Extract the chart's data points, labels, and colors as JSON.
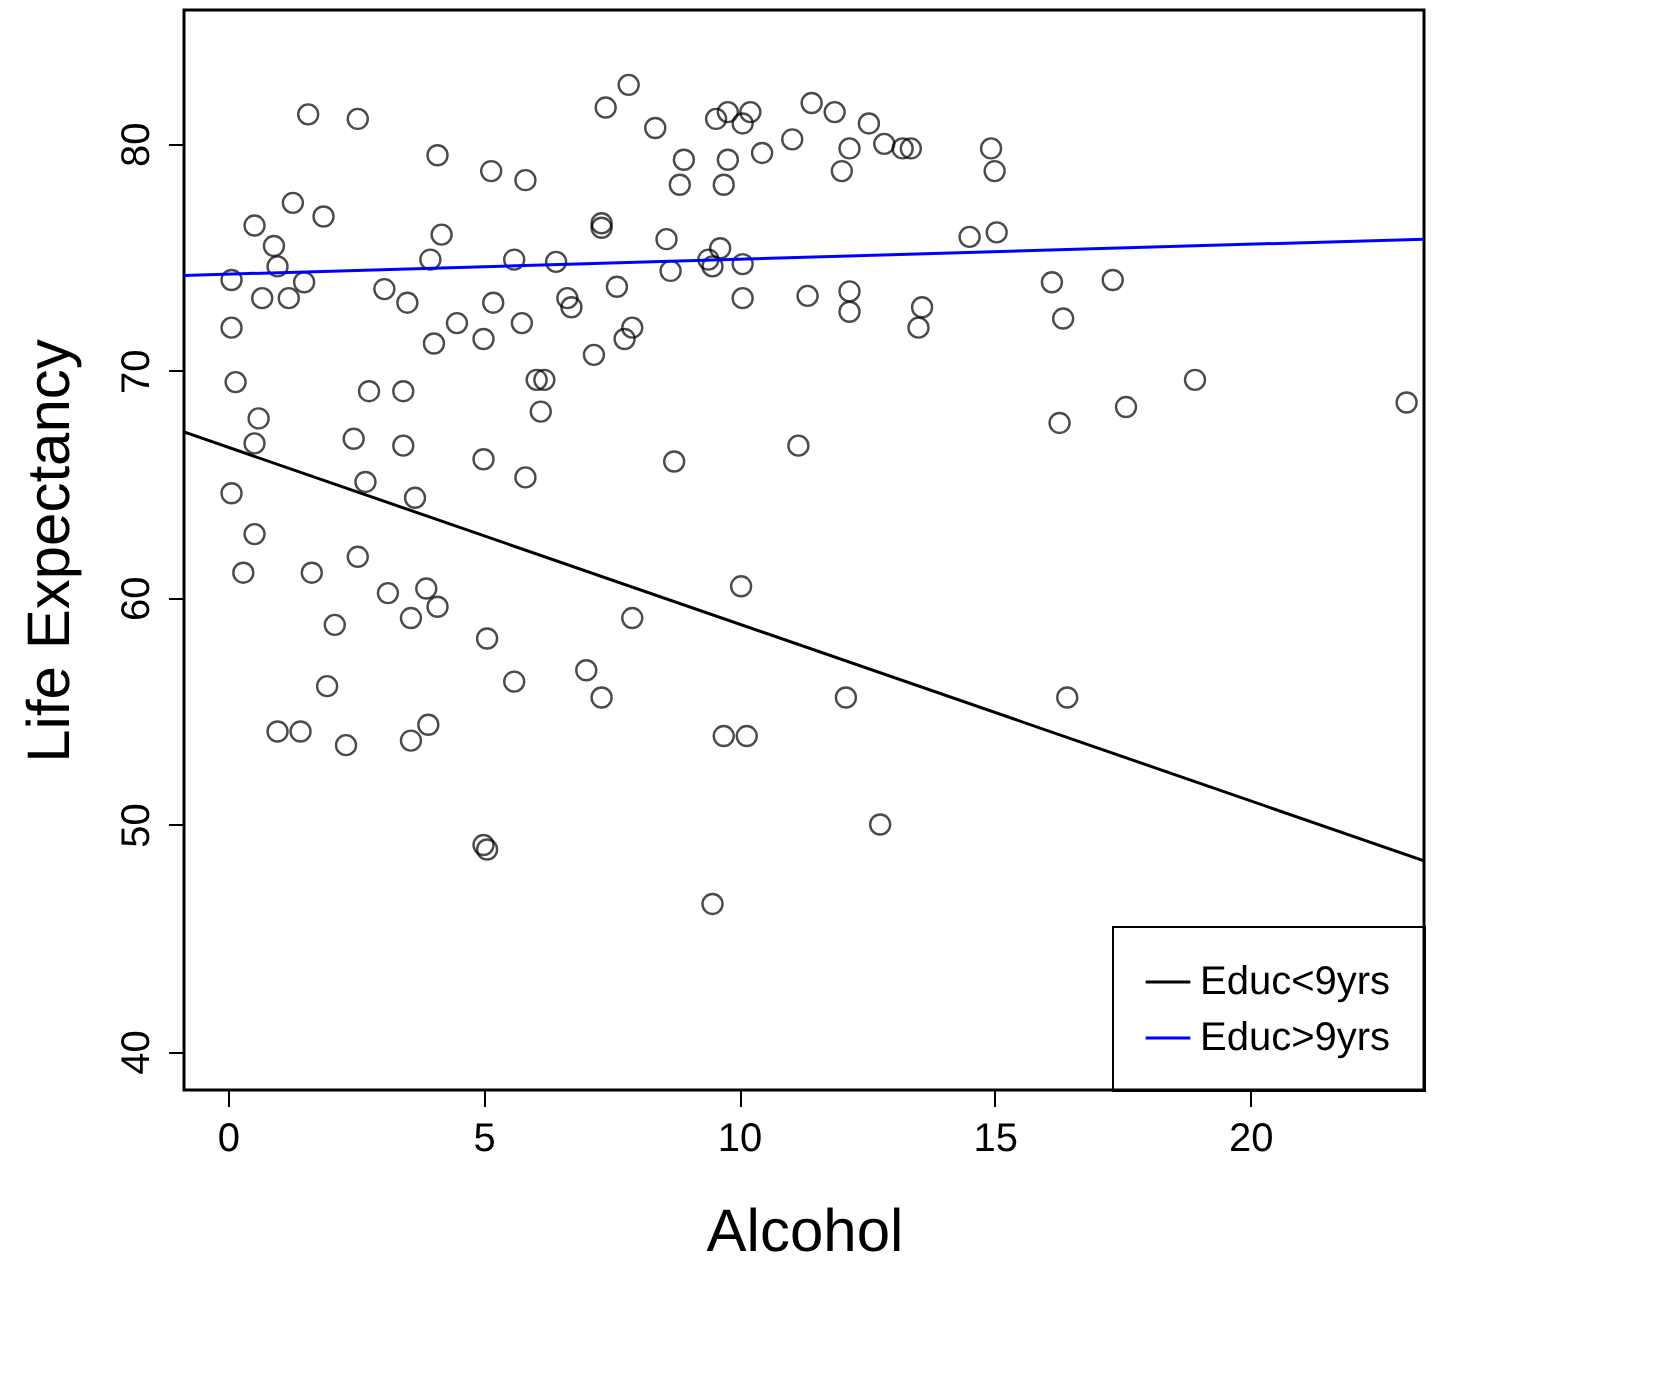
{
  "chart_data": {
    "type": "scatter",
    "xlabel": "Alcohol",
    "ylabel": "Life Expectancy",
    "xlim": [
      -0.86,
      23.4
    ],
    "ylim": [
      38.3,
      85.9
    ],
    "xticks": [
      0,
      5,
      10,
      15,
      20
    ],
    "yticks": [
      40,
      50,
      60,
      70,
      80
    ],
    "grid": false,
    "legend": "bottom right",
    "series": [
      {
        "color": "#000000",
        "marker": "circle",
        "x": [
          1.57,
          2.54,
          4.1,
          5.15,
          5.82,
          1.27,
          1.87,
          0.52,
          0.9,
          0.97,
          0.07,
          1.49,
          0.67,
          1.19,
          0.07,
          3.06,
          3.51,
          3.96,
          4.18,
          6.42,
          6.64,
          6.72,
          5.75,
          5.0,
          7.76,
          7.16,
          0.15,
          0.6,
          0.52,
          3.43,
          2.76,
          2.46,
          6.04,
          6.19,
          6.12,
          5.0,
          3.43,
          2.69,
          5.82,
          3.66,
          0.07,
          0.52,
          0.3,
          1.64,
          2.54,
          3.13,
          3.88,
          3.58,
          4.1,
          2.09,
          5.07,
          5.6,
          1.94,
          0.97,
          1.42,
          2.31,
          3.58,
          3.92,
          5.0,
          5.07,
          7.01,
          7.31,
          7.91,
          10.04,
          9.7,
          10.15,
          12.09,
          12.76,
          9.48,
          16.42,
          7.84,
          7.39,
          8.36,
          8.92,
          8.84,
          9.7,
          9.78,
          10.07,
          10.22,
          9.78,
          9.55,
          10.45,
          11.04,
          11.42,
          11.87,
          12.16,
          12.01,
          12.54,
          12.84,
          13.2,
          13.36,
          14.93,
          15.0,
          7.31,
          7.31,
          8.58,
          8.66,
          9.4,
          9.63,
          9.48,
          10.07,
          10.07,
          11.34,
          12.16,
          12.16,
          13.58,
          13.51,
          8.73,
          11.16,
          7.91,
          7.61,
          15.04,
          16.12,
          17.31,
          16.34,
          18.92,
          17.57,
          16.27,
          23.06,
          14.51,
          5.6,
          5.19,
          4.48,
          4.03
        ],
        "values": [
          81.3,
          81.1,
          79.5,
          78.8,
          78.4,
          77.4,
          76.8,
          76.4,
          75.5,
          74.6,
          74.0,
          73.9,
          73.2,
          73.2,
          71.9,
          73.6,
          73.0,
          74.9,
          76.0,
          74.8,
          73.2,
          72.8,
          72.1,
          71.4,
          71.4,
          70.7,
          69.5,
          67.9,
          66.8,
          69.1,
          69.1,
          67.0,
          69.6,
          69.6,
          68.2,
          66.1,
          66.7,
          65.1,
          65.3,
          64.4,
          64.6,
          62.8,
          61.1,
          61.1,
          61.8,
          60.2,
          60.4,
          59.1,
          59.6,
          58.8,
          58.2,
          56.3,
          56.1,
          54.1,
          54.1,
          53.5,
          53.7,
          54.4,
          49.1,
          48.9,
          56.8,
          55.6,
          59.1,
          60.5,
          53.9,
          53.9,
          55.6,
          50.0,
          46.5,
          55.6,
          82.6,
          81.6,
          80.7,
          79.3,
          78.2,
          78.2,
          79.3,
          80.9,
          81.4,
          81.4,
          81.1,
          79.6,
          80.2,
          81.8,
          81.4,
          79.8,
          78.8,
          80.9,
          80.0,
          79.8,
          79.8,
          79.8,
          78.8,
          76.5,
          76.3,
          75.8,
          74.4,
          74.9,
          75.4,
          74.6,
          74.7,
          73.2,
          73.3,
          73.5,
          72.6,
          72.8,
          71.9,
          66.0,
          66.7,
          71.9,
          73.7,
          76.1,
          73.9,
          74.0,
          72.3,
          69.6,
          68.4,
          67.7,
          68.6,
          75.9,
          74.9,
          73.0,
          72.1,
          71.2
        ]
      },
      {
        "type": "line",
        "name": "Educ<9yrs",
        "color": "#000000",
        "x": [
          -0.86,
          23.4
        ],
        "values": [
          67.3,
          48.4
        ]
      },
      {
        "type": "line",
        "name": "Educ>9yrs",
        "color": "#0000ff",
        "x": [
          -0.86,
          23.4
        ],
        "values": [
          74.2,
          75.8
        ]
      }
    ]
  }
}
